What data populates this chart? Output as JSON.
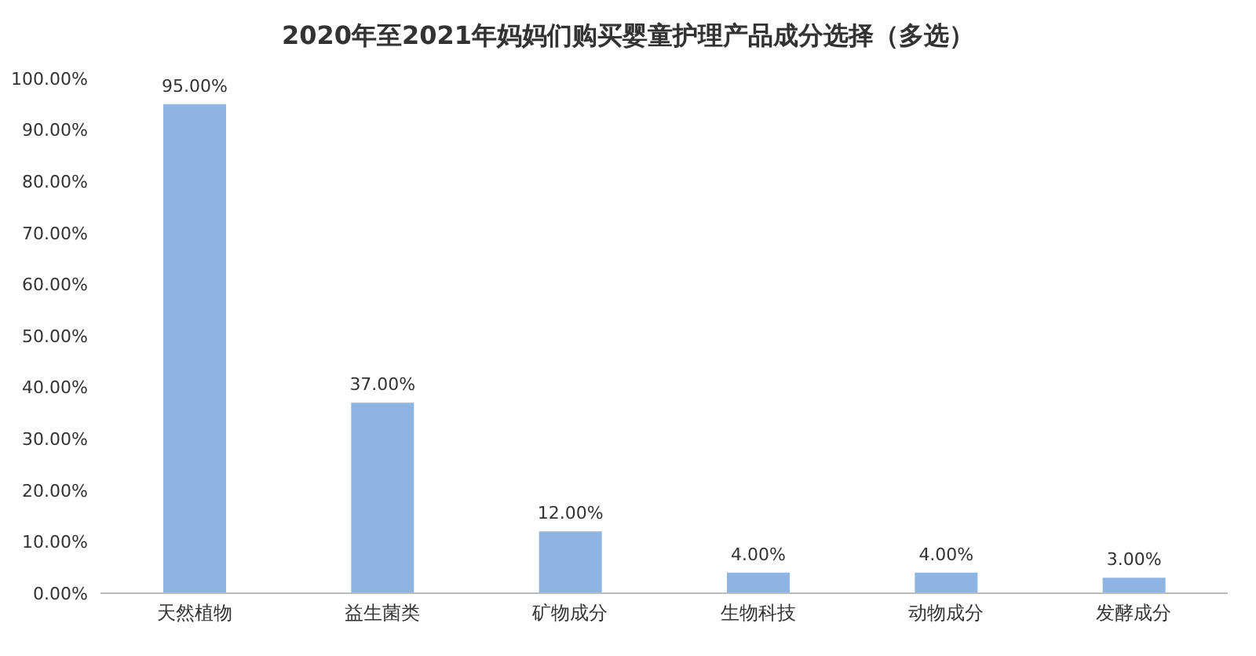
{
  "chart_data": {
    "type": "bar",
    "title": "2020年至2021年妈妈们购买婴童护理产品成分选择（多选）",
    "categories": [
      "天然植物",
      "益生菌类",
      "矿物成分",
      "生物科技",
      "动物成分",
      "发酵成分"
    ],
    "values": [
      95,
      37,
      12,
      4,
      4,
      3
    ],
    "value_labels": [
      "95.00%",
      "37.00%",
      "12.00%",
      "4.00%",
      "4.00%",
      "3.00%"
    ],
    "color": "#8eb4e3",
    "ylim": [
      0,
      100
    ],
    "yticks": [
      {
        "value": 0,
        "label": "0.00%"
      },
      {
        "value": 10,
        "label": "10.00%"
      },
      {
        "value": 20,
        "label": "20.00%"
      },
      {
        "value": 30,
        "label": "30.00%"
      },
      {
        "value": 40,
        "label": "40.00%"
      },
      {
        "value": 50,
        "label": "50.00%"
      },
      {
        "value": 60,
        "label": "60.00%"
      },
      {
        "value": 70,
        "label": "70.00%"
      },
      {
        "value": 80,
        "label": "80.00%"
      },
      {
        "value": 90,
        "label": "90.00%"
      },
      {
        "value": 100,
        "label": "100.00%"
      }
    ],
    "grid": false,
    "legend": false
  }
}
